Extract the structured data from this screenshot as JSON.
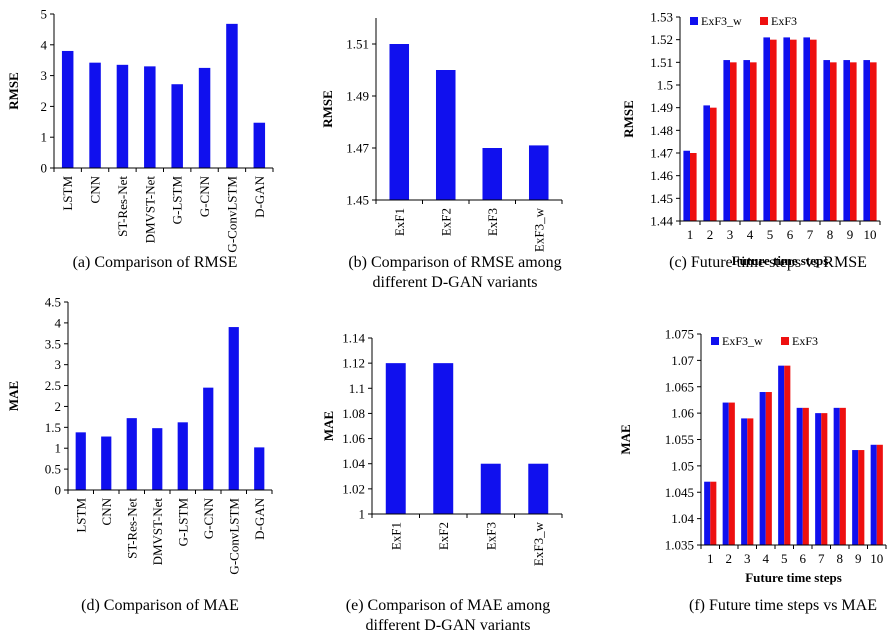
{
  "colors": {
    "blue": "#1010ee",
    "red": "#ee1010",
    "axis": "#000000"
  },
  "chart_data": [
    {
      "id": "a",
      "type": "bar",
      "caption": "(a) Comparison of RMSE",
      "ylabel": "RMSE",
      "xlabel": "",
      "ylim": [
        0,
        5
      ],
      "yticks": [
        0,
        1,
        2,
        3,
        4,
        5
      ],
      "categories": [
        "LSTM",
        "CNN",
        "ST-Res-Net",
        "DMVST-Net",
        "G-LSTM",
        "G-CNN",
        "G-ConvLSTM",
        "D-GAN"
      ],
      "values": [
        3.8,
        3.42,
        3.35,
        3.3,
        2.72,
        3.25,
        4.68,
        1.47
      ]
    },
    {
      "id": "b",
      "type": "bar",
      "caption": [
        "(b) Comparison of RMSE among",
        "different D-GAN variants"
      ],
      "ylabel": "RMSE",
      "xlabel": "",
      "ylim": [
        1.45,
        1.52
      ],
      "yticks": [
        1.45,
        1.47,
        1.49,
        1.51
      ],
      "categories": [
        "ExF1",
        "ExF2",
        "ExF3",
        "ExF3_w"
      ],
      "values": [
        1.51,
        1.5,
        1.47,
        1.471
      ]
    },
    {
      "id": "c",
      "type": "bar",
      "caption": "(c) Future time steps vs RMSE",
      "ylabel": "RMSE",
      "xlabel": "Future time steps",
      "ylim": [
        1.44,
        1.53
      ],
      "yticks": [
        1.44,
        1.45,
        1.46,
        1.47,
        1.48,
        1.49,
        1.5,
        1.51,
        1.52,
        1.53
      ],
      "categories": [
        "1",
        "2",
        "3",
        "4",
        "5",
        "6",
        "7",
        "8",
        "9",
        "10"
      ],
      "legend": "top",
      "series": [
        {
          "name": "ExF3_w",
          "color": "#1010ee",
          "values": [
            1.471,
            1.491,
            1.511,
            1.511,
            1.521,
            1.521,
            1.521,
            1.511,
            1.511,
            1.511
          ]
        },
        {
          "name": "ExF3",
          "color": "#ee1010",
          "values": [
            1.47,
            1.49,
            1.51,
            1.51,
            1.52,
            1.52,
            1.52,
            1.51,
            1.51,
            1.51
          ]
        }
      ]
    },
    {
      "id": "d",
      "type": "bar",
      "caption": "(d) Comparison of MAE",
      "ylabel": "MAE",
      "xlabel": "",
      "ylim": [
        0,
        4.5
      ],
      "yticks": [
        0,
        0.5,
        1,
        1.5,
        2,
        2.5,
        3,
        3.5,
        4,
        4.5
      ],
      "categories": [
        "LSTM",
        "CNN",
        "ST-Res-Net",
        "DMVST-Net",
        "G-LSTM",
        "G-CNN",
        "G-ConvLSTM",
        "D-GAN"
      ],
      "values": [
        1.38,
        1.28,
        1.72,
        1.48,
        1.62,
        2.45,
        3.9,
        1.02
      ]
    },
    {
      "id": "e",
      "type": "bar",
      "caption": [
        "(e) Comparison of MAE among",
        "different D-GAN variants"
      ],
      "ylabel": "MAE",
      "xlabel": "",
      "ylim": [
        1,
        1.14
      ],
      "yticks": [
        1,
        1.02,
        1.04,
        1.06,
        1.08,
        1.1,
        1.12,
        1.14
      ],
      "categories": [
        "ExF1",
        "ExF2",
        "ExF3",
        "ExF3_w"
      ],
      "values": [
        1.12,
        1.12,
        1.04,
        1.04
      ]
    },
    {
      "id": "f",
      "type": "bar",
      "caption": "(f) Future time steps vs MAE",
      "ylabel": "MAE",
      "xlabel": "Future time steps",
      "ylim": [
        1.035,
        1.075
      ],
      "yticks": [
        1.035,
        1.04,
        1.045,
        1.05,
        1.055,
        1.06,
        1.065,
        1.07,
        1.075
      ],
      "categories": [
        "1",
        "2",
        "3",
        "4",
        "5",
        "6",
        "7",
        "8",
        "9",
        "10"
      ],
      "legend": "top",
      "series": [
        {
          "name": "ExF3_w",
          "color": "#1010ee",
          "values": [
            1.047,
            1.062,
            1.059,
            1.064,
            1.069,
            1.061,
            1.06,
            1.061,
            1.053,
            1.054
          ]
        },
        {
          "name": "ExF3",
          "color": "#ee1010",
          "values": [
            1.047,
            1.062,
            1.059,
            1.064,
            1.069,
            1.061,
            1.06,
            1.061,
            1.053,
            1.054
          ]
        }
      ]
    }
  ]
}
